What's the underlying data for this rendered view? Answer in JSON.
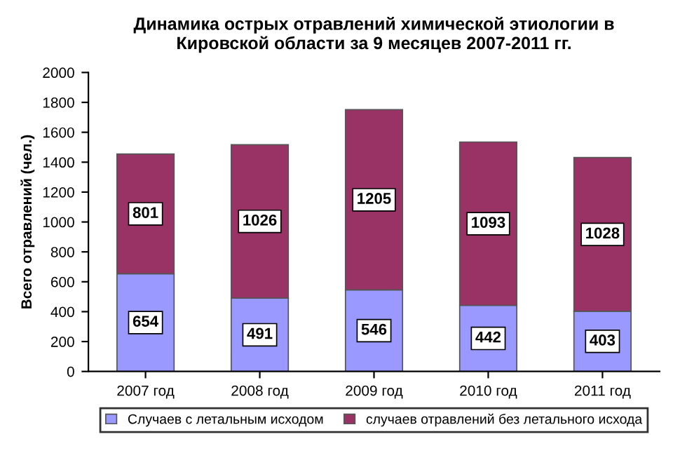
{
  "chart_data": {
    "type": "bar",
    "stacked": true,
    "title": "Динамика острых отравлений химической этиологии в\nКировской области за 9 месяцев 2007-2011 гг.",
    "ylabel": "Всего отравлений (чел.)",
    "categories": [
      "2007 год",
      "2008 год",
      "2009 год",
      "2010 год",
      "2011 год"
    ],
    "series": [
      {
        "name": "Случаев с летальным исходом",
        "color": "#9999ff",
        "values": [
          654,
          491,
          546,
          442,
          403
        ]
      },
      {
        "name": "случаев отравлений без летального исхода",
        "color": "#993366",
        "values": [
          801,
          1026,
          1205,
          1093,
          1028
        ]
      }
    ],
    "ylim": [
      0,
      2000
    ],
    "yticks": [
      0,
      200,
      400,
      600,
      800,
      1000,
      1200,
      1400,
      1600,
      1800,
      2000
    ],
    "data_labels": true,
    "legend": "bottom",
    "grid": false
  }
}
